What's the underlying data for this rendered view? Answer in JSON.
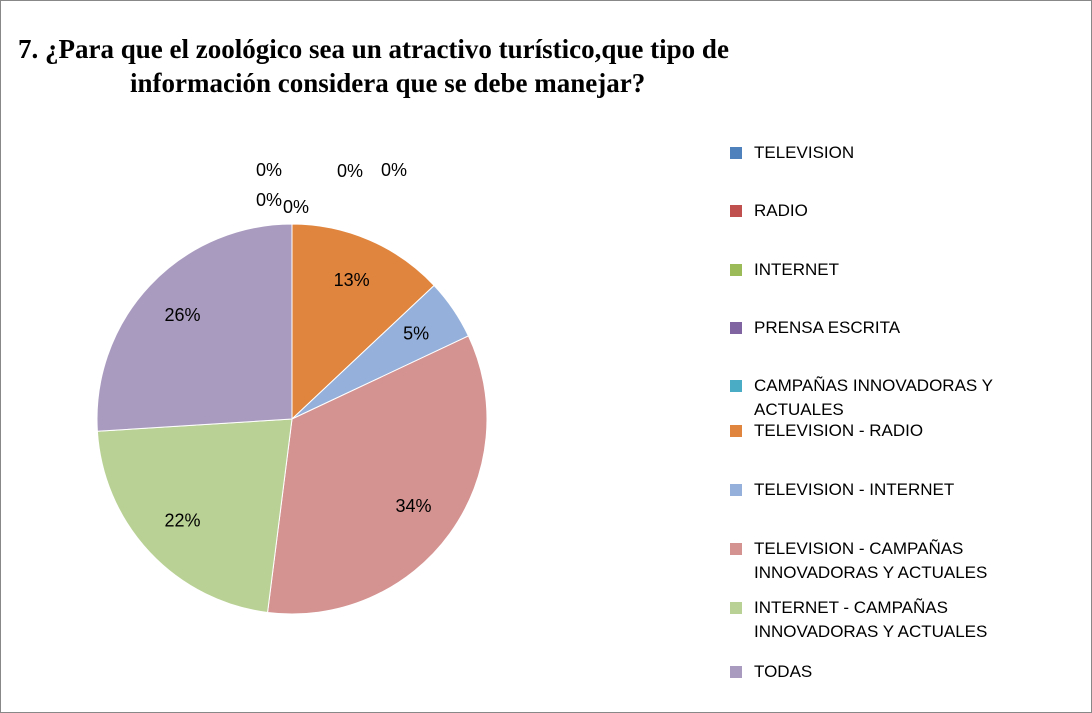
{
  "chart_data": {
    "type": "pie",
    "title": [
      "7. ¿Para que el zoológico sea un atractivo turístico,que tipo de",
      "información considera que se debe manejar?"
    ],
    "categories": [
      "TELEVISION",
      "RADIO",
      "INTERNET",
      "PRENSA ESCRITA",
      "CAMPAÑAS INNOVADORAS Y ACTUALES",
      "TELEVISION - RADIO",
      "TELEVISION - INTERNET",
      "TELEVISION - CAMPAÑAS INNOVADORAS Y ACTUALES",
      "INTERNET - CAMPAÑAS INNOVADORAS Y ACTUALES",
      "TODAS"
    ],
    "values": [
      0,
      0,
      0,
      0,
      0,
      13,
      5,
      34,
      22,
      26
    ],
    "value_labels": [
      "0%",
      "0%",
      "0%",
      "0%",
      "0%",
      "13%",
      "5%",
      "34%",
      "22%",
      "26%"
    ],
    "colors": [
      "#4f81bd",
      "#c0504d",
      "#9bbb59",
      "#8064a2",
      "#4bacc6",
      "#e0853e",
      "#95b1db",
      "#d49290",
      "#b9d195",
      "#a99bbf"
    ],
    "legend": "right"
  }
}
